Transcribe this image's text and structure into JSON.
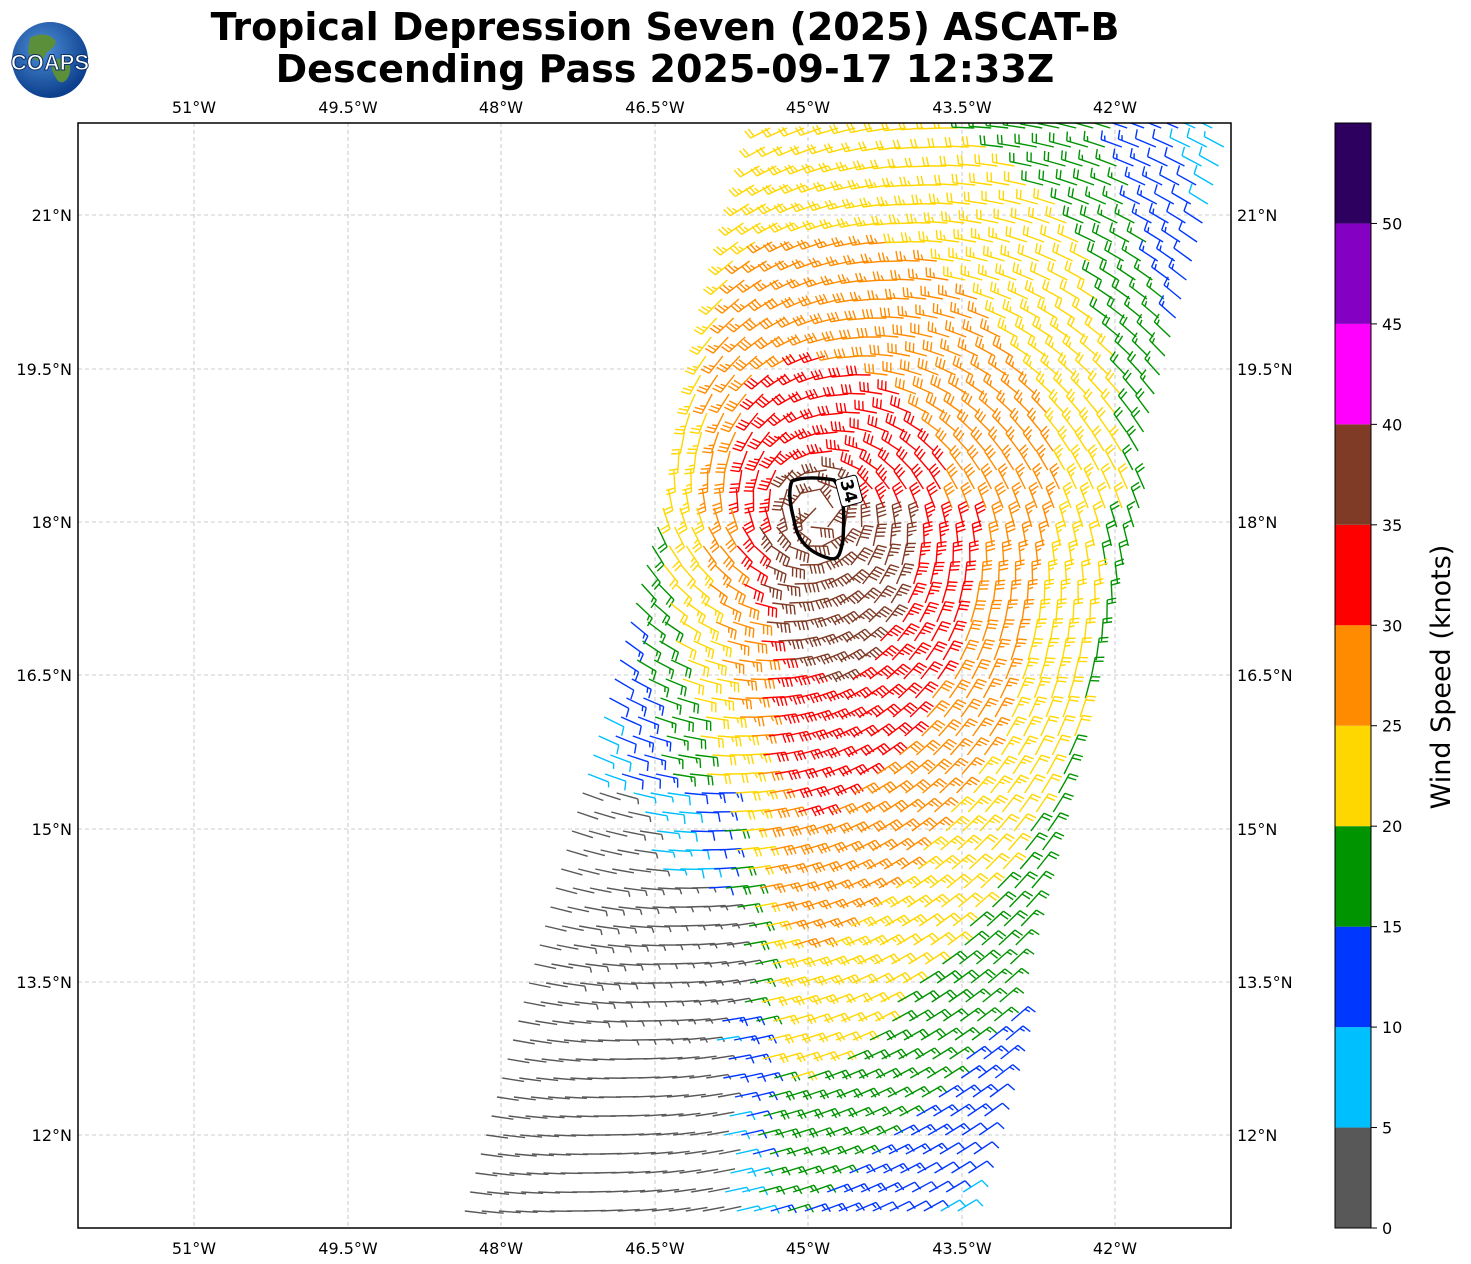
{
  "header": {
    "title_line1": "Tropical Depression Seven (2025) ASCAT-B",
    "title_line2": "Descending Pass 2025-09-17 12:33Z",
    "logo_text": "COAPS"
  },
  "map": {
    "lon_labels": [
      "51°W",
      "49.5°W",
      "48°W",
      "46.5°W",
      "45°W",
      "43.5°W",
      "42°W"
    ],
    "lat_labels": [
      "21°N",
      "19.5°N",
      "18°N",
      "16.5°N",
      "15°N",
      "13.5°N",
      "12°N"
    ],
    "contour_label": "34",
    "gridlines": true
  },
  "colorbar": {
    "label": "Wind Speed (knots)",
    "ticks": [
      "0",
      "5",
      "10",
      "15",
      "20",
      "25",
      "30",
      "35",
      "40",
      "45",
      "50"
    ],
    "colors": [
      "#585858",
      "#00bfff",
      "#0037ff",
      "#009400",
      "#ffd700",
      "#ff8c00",
      "#ff0000",
      "#7f3b26",
      "#ff00ff",
      "#8400c2",
      "#2d0060"
    ]
  }
}
